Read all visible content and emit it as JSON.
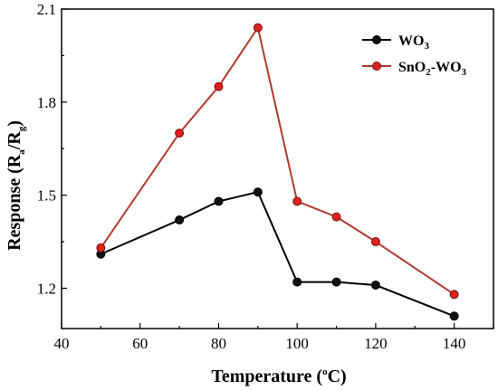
{
  "chart_data": {
    "type": "line",
    "title": "",
    "xlabel": {
      "text": "Temperature (",
      "sup": "o",
      "after": "C)"
    },
    "ylabel": {
      "pre": "Response (R",
      "sub1": "a",
      "mid": "/R",
      "sub2": "g",
      "post": ")"
    },
    "xlim": [
      40,
      150
    ],
    "ylim": [
      1.07,
      2.1
    ],
    "xticks": [
      40,
      60,
      80,
      100,
      120,
      140
    ],
    "yticks": [
      1.2,
      1.5,
      1.8,
      2.1
    ],
    "x": [
      50,
      70,
      80,
      90,
      100,
      110,
      120,
      140
    ],
    "grid": false,
    "legend_position": "top-right",
    "series": [
      {
        "name": {
          "base": "WO",
          "sub": "3",
          "rest": "",
          "sub2": ""
        },
        "color": "#000000",
        "marker_fill": "#111111",
        "values": [
          1.31,
          1.42,
          1.48,
          1.51,
          1.22,
          1.22,
          1.21,
          1.11
        ]
      },
      {
        "name": {
          "base": "SnO",
          "sub": "2",
          "rest": "-WO",
          "sub2": "3"
        },
        "color": "#b03a2e",
        "marker_fill": "#e0201c",
        "values": [
          1.33,
          1.7,
          1.85,
          2.04,
          1.48,
          1.43,
          1.35,
          1.18
        ]
      }
    ]
  }
}
